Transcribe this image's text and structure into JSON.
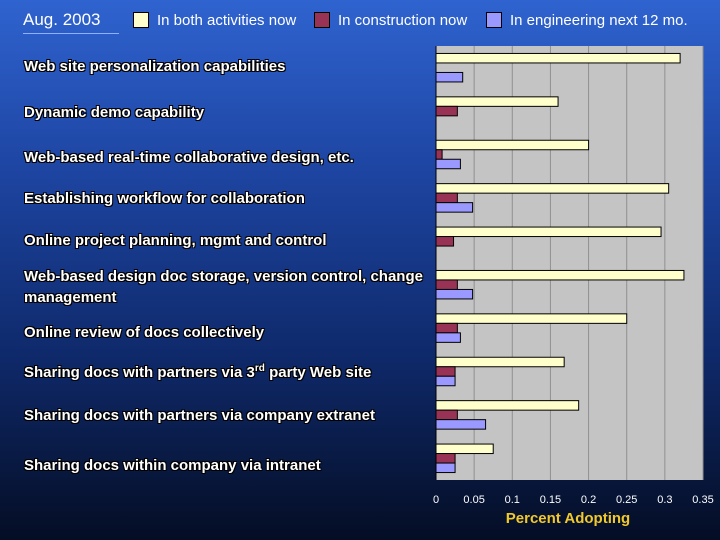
{
  "header": {
    "date": "Aug. 2003"
  },
  "legend": [
    {
      "label": "In both activities now",
      "color": "#ffffcc"
    },
    {
      "label": "In construction now",
      "color": "#993355"
    },
    {
      "label": "In engineering next 12 mo.",
      "color": "#9999ff"
    }
  ],
  "chart_data": {
    "type": "bar",
    "orientation": "horizontal",
    "categories": [
      "Web site personalization capabilities",
      "Dynamic demo capability",
      "Web-based real-time collaborative design, etc.",
      "Establishing workflow for collaboration",
      "Online project planning, mgmt and control",
      "Web-based design doc storage, version control, change management",
      "Online review of docs collectively",
      "Sharing docs with partners via 3rd party Web site",
      "Sharing docs with partners via company extranet",
      "Sharing docs within company via intranet"
    ],
    "series": [
      {
        "name": "In both activities now",
        "color": "#ffffcc",
        "values": [
          0.32,
          0.16,
          0.2,
          0.305,
          0.295,
          0.325,
          0.25,
          0.168,
          0.187,
          0.075
        ]
      },
      {
        "name": "In construction now",
        "color": "#993355",
        "values": [
          0.0,
          0.028,
          0.008,
          0.028,
          0.023,
          0.028,
          0.028,
          0.025,
          0.028,
          0.025
        ]
      },
      {
        "name": "In engineering next 12 mo.",
        "color": "#9999ff",
        "values": [
          0.035,
          0.0,
          0.032,
          0.048,
          0.0,
          0.048,
          0.032,
          0.025,
          0.065,
          0.025
        ]
      }
    ],
    "xlim": [
      0,
      0.35
    ],
    "xticks": [
      "0",
      "0.05",
      "0.1",
      "0.15",
      "0.2",
      "0.25",
      "0.3",
      "0.35"
    ],
    "xlabel": "Percent Adopting",
    "grid": true,
    "legend_position": "top"
  }
}
